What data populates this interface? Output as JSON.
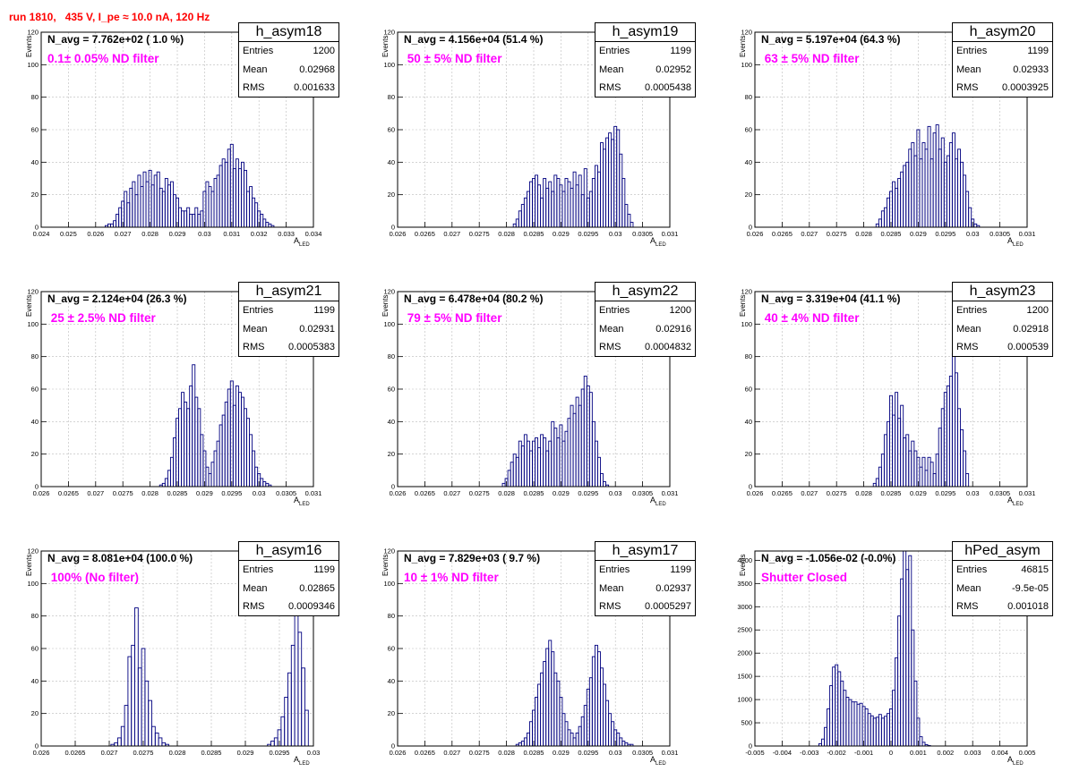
{
  "run_title": "run 1810,   435 V, I_pe ≈ 10.0 nA, 120 Hz",
  "colors": {
    "title": "#ff0000",
    "annotation": "#ff00ff",
    "hist_line": "#000080",
    "grid": "#bbbbbb"
  },
  "common": {
    "ylabel": "Events",
    "xlabel": "A",
    "xlabel_sub": "LED"
  },
  "chart_data": [
    {
      "type": "bar",
      "name": "h_asym18",
      "n_avg_text": "N_avg = 7.762e+02 ( 1.0 %)",
      "filter_text": "0.1± 0.05% ND filter",
      "stats": {
        "entries": "1200",
        "mean": "0.02968",
        "rms": "0.001633"
      },
      "xlim": [
        0.024,
        0.034
      ],
      "ylim": [
        0,
        120
      ],
      "x_ticks": [
        "0.024",
        "0.025",
        "0.026",
        "0.027",
        "0.028",
        "0.029",
        "0.03",
        "0.031",
        "0.032",
        "0.033",
        "0.034"
      ],
      "y_ticks": [
        "0",
        "20",
        "40",
        "60",
        "80",
        "100",
        "120"
      ],
      "x": [
        0.0264,
        0.0265,
        0.0266,
        0.0267,
        0.0268,
        0.0269,
        0.027,
        0.0271,
        0.0272,
        0.0273,
        0.0274,
        0.0275,
        0.0276,
        0.0277,
        0.0278,
        0.0279,
        0.028,
        0.0281,
        0.0282,
        0.0283,
        0.0284,
        0.0285,
        0.0286,
        0.0287,
        0.0288,
        0.0289,
        0.029,
        0.0291,
        0.0292,
        0.0293,
        0.0294,
        0.0295,
        0.0296,
        0.0297,
        0.0298,
        0.0299,
        0.03,
        0.0301,
        0.0302,
        0.0303,
        0.0304,
        0.0305,
        0.0306,
        0.0307,
        0.0308,
        0.0309,
        0.031,
        0.0311,
        0.0312,
        0.0313,
        0.0314,
        0.0315,
        0.0316,
        0.0317,
        0.0318,
        0.0319,
        0.032,
        0.0321,
        0.0322,
        0.0323,
        0.0324,
        0.0325
      ],
      "values": [
        1,
        2,
        2,
        4,
        8,
        12,
        16,
        22,
        15,
        24,
        28,
        20,
        32,
        25,
        34,
        28,
        35,
        26,
        32,
        34,
        24,
        22,
        30,
        26,
        28,
        20,
        18,
        12,
        10,
        10,
        12,
        8,
        8,
        12,
        8,
        10,
        22,
        28,
        25,
        22,
        30,
        32,
        38,
        42,
        40,
        48,
        51,
        36,
        42,
        36,
        40,
        35,
        22,
        25,
        18,
        15,
        10,
        8,
        5,
        3,
        2,
        1
      ]
    },
    {
      "type": "bar",
      "name": "h_asym19",
      "n_avg_text": "N_avg = 4.156e+04 (51.4 %)",
      "filter_text": " 50 ± 5% ND filter",
      "stats": {
        "entries": "1199",
        "mean": "0.02952",
        "rms": "0.0005438"
      },
      "xlim": [
        0.026,
        0.031
      ],
      "ylim": [
        0,
        120
      ],
      "x_ticks": [
        "0.026",
        "0.0265",
        "0.027",
        "0.0275",
        "0.028",
        "0.0285",
        "0.029",
        "0.0295",
        "0.03",
        "0.0305",
        "0.031"
      ],
      "y_ticks": [
        "0",
        "20",
        "40",
        "60",
        "80",
        "100",
        "120"
      ],
      "x": [
        0.02815,
        0.0282,
        0.02825,
        0.0283,
        0.02835,
        0.0284,
        0.02845,
        0.0285,
        0.02855,
        0.0286,
        0.02865,
        0.0287,
        0.02875,
        0.0288,
        0.02885,
        0.0289,
        0.02895,
        0.029,
        0.02905,
        0.0291,
        0.02915,
        0.0292,
        0.02925,
        0.0293,
        0.02935,
        0.0294,
        0.02945,
        0.0295,
        0.02955,
        0.0296,
        0.02965,
        0.0297,
        0.02975,
        0.0298,
        0.02985,
        0.0299,
        0.02995,
        0.03,
        0.03005,
        0.0301,
        0.03015,
        0.0302,
        0.03025,
        0.0303
      ],
      "values": [
        2,
        5,
        10,
        14,
        18,
        22,
        28,
        30,
        32,
        26,
        18,
        30,
        24,
        28,
        22,
        32,
        30,
        26,
        22,
        30,
        28,
        24,
        34,
        26,
        32,
        20,
        36,
        18,
        22,
        30,
        38,
        34,
        52,
        48,
        55,
        58,
        54,
        62,
        60,
        45,
        30,
        14,
        8,
        3
      ]
    },
    {
      "type": "bar",
      "name": "h_asym20",
      "n_avg_text": "N_avg = 5.197e+04 (64.3 %)",
      "filter_text": " 63 ± 5% ND filter",
      "stats": {
        "entries": "1199",
        "mean": "0.02933",
        "rms": "0.0003925"
      },
      "xlim": [
        0.026,
        0.031
      ],
      "ylim": [
        0,
        120
      ],
      "x_ticks": [
        "0.026",
        "0.0265",
        "0.027",
        "0.0275",
        "0.028",
        "0.0285",
        "0.029",
        "0.0295",
        "0.03",
        "0.0305",
        "0.031"
      ],
      "y_ticks": [
        "0",
        "20",
        "40",
        "60",
        "80",
        "100",
        "120"
      ],
      "x": [
        0.02825,
        0.0283,
        0.02835,
        0.0284,
        0.02845,
        0.0285,
        0.02855,
        0.0286,
        0.02865,
        0.0287,
        0.02875,
        0.0288,
        0.02885,
        0.0289,
        0.02895,
        0.029,
        0.02905,
        0.0291,
        0.02915,
        0.0292,
        0.02925,
        0.0293,
        0.02935,
        0.0294,
        0.02945,
        0.0295,
        0.02955,
        0.0296,
        0.02965,
        0.0297,
        0.02975,
        0.0298,
        0.02985,
        0.0299,
        0.02995,
        0.03,
        0.03005,
        0.0301,
        0.03015
      ],
      "values": [
        2,
        5,
        10,
        12,
        18,
        22,
        28,
        24,
        30,
        34,
        38,
        40,
        48,
        52,
        44,
        60,
        42,
        52,
        48,
        62,
        42,
        58,
        63,
        48,
        55,
        40,
        44,
        52,
        58,
        42,
        48,
        40,
        32,
        22,
        12,
        5,
        2,
        1,
        0
      ]
    },
    {
      "type": "bar",
      "name": "h_asym21",
      "n_avg_text": "N_avg = 2.124e+04 (26.3 %)",
      "filter_text": " 25 ± 2.5% ND filter",
      "stats": {
        "entries": "1199",
        "mean": "0.02931",
        "rms": "0.0005383"
      },
      "xlim": [
        0.026,
        0.031
      ],
      "ylim": [
        0,
        120
      ],
      "x_ticks": [
        "0.026",
        "0.0265",
        "0.027",
        "0.0275",
        "0.028",
        "0.0285",
        "0.029",
        "0.0295",
        "0.03",
        "0.0305",
        "0.031"
      ],
      "y_ticks": [
        "0",
        "20",
        "40",
        "60",
        "80",
        "100",
        "120"
      ],
      "x": [
        0.0282,
        0.02825,
        0.0283,
        0.02835,
        0.0284,
        0.02845,
        0.0285,
        0.02855,
        0.0286,
        0.02865,
        0.0287,
        0.02875,
        0.0288,
        0.02885,
        0.0289,
        0.02895,
        0.029,
        0.02905,
        0.0291,
        0.02915,
        0.0292,
        0.02925,
        0.0293,
        0.02935,
        0.0294,
        0.02945,
        0.0295,
        0.02955,
        0.0296,
        0.02965,
        0.0297,
        0.02975,
        0.0298,
        0.02985,
        0.0299,
        0.02995,
        0.03,
        0.03005,
        0.0301,
        0.03015,
        0.0302
      ],
      "values": [
        1,
        2,
        5,
        10,
        18,
        30,
        42,
        48,
        58,
        52,
        48,
        62,
        75,
        55,
        48,
        32,
        22,
        12,
        8,
        15,
        22,
        28,
        38,
        44,
        52,
        60,
        65,
        50,
        62,
        58,
        55,
        48,
        42,
        32,
        22,
        12,
        8,
        5,
        3,
        2,
        1
      ]
    },
    {
      "type": "bar",
      "name": "h_asym22",
      "n_avg_text": "N_avg = 6.478e+04 (80.2 %)",
      "filter_text": " 79 ± 5% ND filter",
      "stats": {
        "entries": "1200",
        "mean": "0.02916",
        "rms": "0.0004832"
      },
      "xlim": [
        0.026,
        0.031
      ],
      "ylim": [
        0,
        120
      ],
      "x_ticks": [
        "0.026",
        "0.0265",
        "0.027",
        "0.0275",
        "0.028",
        "0.0285",
        "0.029",
        "0.0295",
        "0.03",
        "0.0305",
        "0.031"
      ],
      "y_ticks": [
        "0",
        "20",
        "40",
        "60",
        "80",
        "100",
        "120"
      ],
      "x": [
        0.02795,
        0.028,
        0.02805,
        0.0281,
        0.02815,
        0.0282,
        0.02825,
        0.0283,
        0.02835,
        0.0284,
        0.02845,
        0.0285,
        0.02855,
        0.0286,
        0.02865,
        0.0287,
        0.02875,
        0.0288,
        0.02885,
        0.0289,
        0.02895,
        0.029,
        0.02905,
        0.0291,
        0.02915,
        0.0292,
        0.02925,
        0.0293,
        0.02935,
        0.0294,
        0.02945,
        0.0295,
        0.02955,
        0.0296,
        0.02965,
        0.0297,
        0.02975,
        0.0298,
        0.02985
      ],
      "values": [
        2,
        5,
        10,
        15,
        20,
        18,
        28,
        25,
        32,
        28,
        22,
        28,
        30,
        24,
        32,
        30,
        22,
        28,
        40,
        36,
        30,
        38,
        28,
        34,
        42,
        50,
        45,
        55,
        50,
        60,
        68,
        62,
        58,
        40,
        28,
        18,
        8,
        3,
        1
      ]
    },
    {
      "type": "bar",
      "name": "h_asym23",
      "n_avg_text": "N_avg = 3.319e+04 (41.1 %)",
      "filter_text": " 40 ± 4% ND filter",
      "stats": {
        "entries": "1200",
        "mean": "0.02918",
        "rms": "0.000539"
      },
      "xlim": [
        0.026,
        0.031
      ],
      "ylim": [
        0,
        120
      ],
      "x_ticks": [
        "0.026",
        "0.0265",
        "0.027",
        "0.0275",
        "0.028",
        "0.0285",
        "0.029",
        "0.0295",
        "0.03",
        "0.0305",
        "0.031"
      ],
      "y_ticks": [
        "0",
        "20",
        "40",
        "60",
        "80",
        "100",
        "120"
      ],
      "x": [
        0.0282,
        0.02825,
        0.0283,
        0.02835,
        0.0284,
        0.02845,
        0.0285,
        0.02855,
        0.0286,
        0.02865,
        0.0287,
        0.02875,
        0.0288,
        0.02885,
        0.0289,
        0.02895,
        0.029,
        0.02905,
        0.0291,
        0.02915,
        0.0292,
        0.02925,
        0.0293,
        0.02935,
        0.0294,
        0.02945,
        0.0295,
        0.02955,
        0.0296,
        0.02965,
        0.0297,
        0.02975,
        0.0298,
        0.02985,
        0.0299
      ],
      "values": [
        2,
        5,
        12,
        20,
        32,
        40,
        56,
        44,
        58,
        42,
        50,
        30,
        32,
        22,
        28,
        22,
        18,
        12,
        18,
        10,
        18,
        15,
        8,
        20,
        36,
        48,
        58,
        62,
        68,
        82,
        70,
        48,
        35,
        22,
        8
      ]
    },
    {
      "type": "bar",
      "name": "h_asym16",
      "n_avg_text": "N_avg = 8.081e+04 (100.0 %)",
      "filter_text": " 100% (No filter)",
      "stats": {
        "entries": "1199",
        "mean": "0.02865",
        "rms": "0.0009346"
      },
      "xlim": [
        0.026,
        0.03
      ],
      "ylim": [
        0,
        120
      ],
      "x_ticks": [
        "0.026",
        "0.0265",
        "0.027",
        "0.0275",
        "0.028",
        "0.0285",
        "0.029",
        "0.0295",
        "0.03"
      ],
      "y_ticks": [
        "0",
        "20",
        "40",
        "60",
        "80",
        "100",
        "120"
      ],
      "x": [
        0.02705,
        0.0271,
        0.02715,
        0.0272,
        0.02725,
        0.0273,
        0.02735,
        0.0274,
        0.02745,
        0.0275,
        0.02755,
        0.0276,
        0.02765,
        0.0277,
        0.02775,
        0.0278,
        0.02785,
        0.0279,
        0.02795,
        0.028,
        0.02805,
        0.0281,
        0.02815,
        0.0282,
        0.02825,
        0.0283,
        0.02835,
        0.0284,
        0.02845,
        0.0285,
        0.02855,
        0.0286,
        0.02865,
        0.0287,
        0.02875,
        0.0288,
        0.02885,
        0.0289,
        0.02895,
        0.029,
        0.02905,
        0.0291,
        0.02915,
        0.0292,
        0.02925,
        0.0293,
        0.02935,
        0.0294,
        0.02945,
        0.0295,
        0.02955,
        0.0296,
        0.02965,
        0.0297,
        0.02975,
        0.0298,
        0.02985,
        0.0299
      ],
      "values": [
        1,
        2,
        5,
        12,
        25,
        55,
        62,
        85,
        48,
        60,
        40,
        28,
        12,
        8,
        5,
        2,
        1,
        0,
        0,
        0,
        0,
        0,
        0,
        0,
        0,
        0,
        0,
        0,
        0,
        0,
        0,
        0,
        0,
        0,
        0,
        0,
        0,
        0,
        0,
        0,
        0,
        0,
        0,
        0,
        0,
        0,
        1,
        3,
        5,
        10,
        18,
        30,
        45,
        62,
        82,
        70,
        48,
        22
      ]
    },
    {
      "type": "bar",
      "name": "h_asym17",
      "n_avg_text": "N_avg = 7.829e+03 ( 9.7 %)",
      "filter_text": "10 ± 1% ND filter",
      "stats": {
        "entries": "1199",
        "mean": "0.02937",
        "rms": "0.0005297"
      },
      "xlim": [
        0.026,
        0.031
      ],
      "ylim": [
        0,
        120
      ],
      "x_ticks": [
        "0.026",
        "0.0265",
        "0.027",
        "0.0275",
        "0.028",
        "0.0285",
        "0.029",
        "0.0295",
        "0.03",
        "0.0305",
        "0.031"
      ],
      "y_ticks": [
        "0",
        "20",
        "40",
        "60",
        "80",
        "100",
        "120"
      ],
      "x": [
        0.0282,
        0.02825,
        0.0283,
        0.02835,
        0.0284,
        0.02845,
        0.0285,
        0.02855,
        0.0286,
        0.02865,
        0.0287,
        0.02875,
        0.0288,
        0.02885,
        0.0289,
        0.02895,
        0.029,
        0.02905,
        0.0291,
        0.02915,
        0.0292,
        0.02925,
        0.0293,
        0.02935,
        0.0294,
        0.02945,
        0.0295,
        0.02955,
        0.0296,
        0.02965,
        0.0297,
        0.02975,
        0.0298,
        0.02985,
        0.0299,
        0.02995,
        0.03,
        0.03005,
        0.0301,
        0.03015,
        0.0302,
        0.03025,
        0.0303
      ],
      "values": [
        1,
        2,
        3,
        5,
        8,
        15,
        22,
        30,
        38,
        45,
        52,
        60,
        65,
        58,
        45,
        40,
        30,
        20,
        15,
        10,
        8,
        5,
        8,
        12,
        18,
        25,
        35,
        42,
        55,
        62,
        58,
        48,
        38,
        28,
        20,
        15,
        10,
        8,
        5,
        3,
        2,
        1,
        1
      ]
    },
    {
      "type": "bar",
      "name": "hPed_asym",
      "n_avg_text": "N_avg = -1.056e-02 (-0.0%)",
      "filter_text": "Shutter Closed",
      "stats": {
        "entries": "46815",
        "mean": "-9.5e-05",
        "rms": "0.001018"
      },
      "xlim": [
        -0.005,
        0.005
      ],
      "ylim": [
        0,
        4200
      ],
      "x_ticks": [
        "-0.005",
        "-0.004",
        "-0.003",
        "-0.002",
        "-0.001",
        "0",
        "0.001",
        "0.002",
        "0.003",
        "0.004",
        "0.005"
      ],
      "y_ticks": [
        "0",
        "500",
        "1000",
        "1500",
        "2000",
        "2500",
        "3000",
        "3500",
        "4000"
      ],
      "x": [
        -0.0026,
        -0.0025,
        -0.0024,
        -0.0023,
        -0.0022,
        -0.0021,
        -0.002,
        -0.0019,
        -0.0018,
        -0.0017,
        -0.0016,
        -0.0015,
        -0.0014,
        -0.0013,
        -0.0012,
        -0.0011,
        -0.001,
        -0.0009,
        -0.0008,
        -0.0007,
        -0.0006,
        -0.0005,
        -0.0004,
        -0.0003,
        -0.0002,
        -0.0001,
        0.0,
        0.0001,
        0.0002,
        0.0003,
        0.0004,
        0.0005,
        0.0006,
        0.0007,
        0.0008,
        0.0009,
        0.001,
        0.0011,
        0.0012,
        0.0013,
        0.0014
      ],
      "values": [
        50,
        150,
        400,
        800,
        1300,
        1700,
        1750,
        1600,
        1400,
        1200,
        1050,
        1000,
        950,
        950,
        900,
        920,
        850,
        800,
        700,
        650,
        600,
        620,
        680,
        600,
        640,
        700,
        800,
        1200,
        1900,
        2800,
        3600,
        4200,
        3800,
        4100,
        2500,
        1400,
        600,
        200,
        80,
        30,
        10
      ]
    }
  ]
}
